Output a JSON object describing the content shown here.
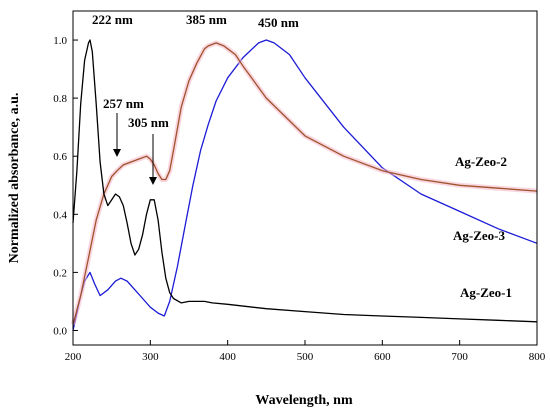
{
  "chart_data": {
    "type": "line",
    "xlabel": "Wavelength, nm",
    "ylabel": "Normalized absorbance, a.u.",
    "xlim": [
      200,
      800
    ],
    "ylim": [
      -0.05,
      1.1
    ],
    "x_ticks": [
      200,
      300,
      400,
      500,
      600,
      700,
      800
    ],
    "x_tick_labels": [
      "200",
      "300",
      "400",
      "500",
      "600",
      "700",
      "800"
    ],
    "y_ticks": [
      0.0,
      0.2,
      0.4,
      0.6,
      0.8,
      1.0
    ],
    "y_tick_labels": [
      "0.0",
      "0.2",
      "0.4",
      "0.6",
      "0.8",
      "1.0"
    ],
    "grid": false,
    "series": [
      {
        "name": "Ag-Zeo-1",
        "color": "#000000",
        "x": [
          200,
          205,
          210,
          215,
          220,
          222,
          225,
          230,
          235,
          240,
          245,
          250,
          255,
          260,
          265,
          270,
          275,
          280,
          285,
          290,
          295,
          300,
          305,
          310,
          315,
          320,
          325,
          330,
          340,
          350,
          360,
          370,
          380,
          400,
          450,
          500,
          550,
          600,
          650,
          700,
          750,
          800
        ],
        "y": [
          0.37,
          0.55,
          0.78,
          0.93,
          0.99,
          1.0,
          0.96,
          0.78,
          0.58,
          0.47,
          0.43,
          0.45,
          0.47,
          0.46,
          0.43,
          0.37,
          0.3,
          0.26,
          0.28,
          0.33,
          0.4,
          0.45,
          0.45,
          0.38,
          0.27,
          0.18,
          0.13,
          0.11,
          0.095,
          0.1,
          0.1,
          0.1,
          0.095,
          0.09,
          0.075,
          0.065,
          0.055,
          0.05,
          0.045,
          0.04,
          0.035,
          0.03
        ]
      },
      {
        "name": "Ag-Zeo-2",
        "color": "#a0522d",
        "x": [
          200,
          210,
          220,
          230,
          240,
          250,
          257,
          265,
          275,
          285,
          295,
          300,
          305,
          310,
          315,
          320,
          325,
          330,
          340,
          350,
          360,
          370,
          375,
          385,
          395,
          400,
          410,
          420,
          450,
          500,
          550,
          600,
          650,
          700,
          750,
          800
        ],
        "y": [
          0.02,
          0.12,
          0.25,
          0.38,
          0.47,
          0.53,
          0.55,
          0.57,
          0.58,
          0.59,
          0.6,
          0.59,
          0.57,
          0.54,
          0.52,
          0.52,
          0.55,
          0.62,
          0.77,
          0.86,
          0.92,
          0.97,
          0.98,
          0.99,
          0.98,
          0.97,
          0.95,
          0.91,
          0.8,
          0.67,
          0.6,
          0.55,
          0.52,
          0.5,
          0.49,
          0.48
        ]
      },
      {
        "name": "Ag-Zeo-3",
        "color": "#1c1cd6",
        "x": [
          200,
          210,
          215,
          222,
          228,
          235,
          245,
          255,
          262,
          270,
          280,
          290,
          300,
          310,
          318,
          325,
          335,
          345,
          355,
          365,
          375,
          385,
          400,
          420,
          440,
          450,
          460,
          480,
          500,
          550,
          600,
          650,
          700,
          750,
          800
        ],
        "y": [
          0.0,
          0.12,
          0.17,
          0.2,
          0.16,
          0.12,
          0.14,
          0.17,
          0.18,
          0.17,
          0.14,
          0.11,
          0.08,
          0.06,
          0.05,
          0.1,
          0.22,
          0.36,
          0.5,
          0.62,
          0.71,
          0.79,
          0.87,
          0.94,
          0.99,
          1.0,
          0.99,
          0.95,
          0.87,
          0.7,
          0.56,
          0.47,
          0.41,
          0.35,
          0.3
        ]
      }
    ],
    "annotations": {
      "peak_222": "222 nm",
      "peak_257": "257 nm",
      "peak_305": "305 nm",
      "peak_385": "385 nm",
      "peak_450": "450 nm"
    },
    "series_labels": {
      "zeo1": "Ag-Zeo-1",
      "zeo2": "Ag-Zeo-2",
      "zeo3": "Ag-Zeo-3"
    }
  }
}
